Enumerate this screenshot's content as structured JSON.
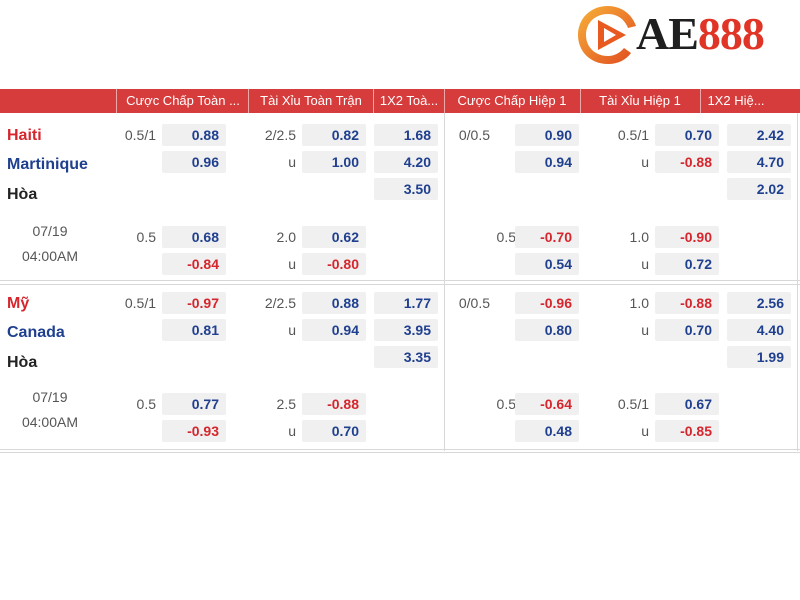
{
  "logo": {
    "text_ae": "AE",
    "text_num": "888"
  },
  "header": {
    "columns": [
      "Cược Chấp Toàn ...",
      "Tài Xỉu Toàn Trận",
      "1X2 Toà...",
      "Cược Chấp Hiệp 1",
      "Tài Xỉu Hiệp 1",
      "1X2 Hiệ..."
    ]
  },
  "colors": {
    "header_bg": "#d63c3c",
    "positive": "#1f3f8f",
    "negative": "#d5262d",
    "cell_bg": "#f0f0f0"
  },
  "matches": [
    {
      "home": "Haiti",
      "away": "Martinique",
      "draw": "Hòa",
      "date": "07/19",
      "time": "04:00AM",
      "main": {
        "ft_hdp_line": "0.5/1",
        "ft_hdp_home": "0.88",
        "ft_hdp_away": "0.96",
        "ft_ou_line": "2/2.5",
        "ft_ou_over": "0.82",
        "ft_ou_u": "u",
        "ft_ou_under": "1.00",
        "ft_1x2_home": "1.68",
        "ft_1x2_away": "4.20",
        "ft_1x2_draw": "3.50",
        "h1_hdp_line": "0/0.5",
        "h1_hdp_home": "0.90",
        "h1_hdp_away": "0.94",
        "h1_ou_line": "0.5/1",
        "h1_ou_over": "0.70",
        "h1_ou_u": "u",
        "h1_ou_under": "-0.88",
        "h1_1x2_home": "2.42",
        "h1_1x2_away": "4.70",
        "h1_1x2_draw": "2.02"
      },
      "alt": {
        "ft_hdp_line": "0.5",
        "ft_hdp_home": "0.68",
        "ft_hdp_away": "-0.84",
        "ft_ou_line": "2.0",
        "ft_ou_over": "0.62",
        "ft_ou_u": "u",
        "ft_ou_under": "-0.80",
        "h1_hdp_line": "0.5",
        "h1_hdp_home": "-0.70",
        "h1_hdp_away": "0.54",
        "h1_ou_line": "1.0",
        "h1_ou_over": "-0.90",
        "h1_ou_u": "u",
        "h1_ou_under": "0.72"
      }
    },
    {
      "home": "Mỹ",
      "away": "Canada",
      "draw": "Hòa",
      "date": "07/19",
      "time": "04:00AM",
      "main": {
        "ft_hdp_line": "0.5/1",
        "ft_hdp_home": "-0.97",
        "ft_hdp_away": "0.81",
        "ft_ou_line": "2/2.5",
        "ft_ou_over": "0.88",
        "ft_ou_u": "u",
        "ft_ou_under": "0.94",
        "ft_1x2_home": "1.77",
        "ft_1x2_away": "3.95",
        "ft_1x2_draw": "3.35",
        "h1_hdp_line": "0/0.5",
        "h1_hdp_home": "-0.96",
        "h1_hdp_away": "0.80",
        "h1_ou_line": "1.0",
        "h1_ou_over": "-0.88",
        "h1_ou_u": "u",
        "h1_ou_under": "0.70",
        "h1_1x2_home": "2.56",
        "h1_1x2_away": "4.40",
        "h1_1x2_draw": "1.99"
      },
      "alt": {
        "ft_hdp_line": "0.5",
        "ft_hdp_home": "0.77",
        "ft_hdp_away": "-0.93",
        "ft_ou_line": "2.5",
        "ft_ou_over": "-0.88",
        "ft_ou_u": "u",
        "ft_ou_under": "0.70",
        "h1_hdp_line": "0.5",
        "h1_hdp_home": "-0.64",
        "h1_hdp_away": "0.48",
        "h1_ou_line": "0.5/1",
        "h1_ou_over": "0.67",
        "h1_ou_u": "u",
        "h1_ou_under": "-0.85"
      }
    }
  ]
}
